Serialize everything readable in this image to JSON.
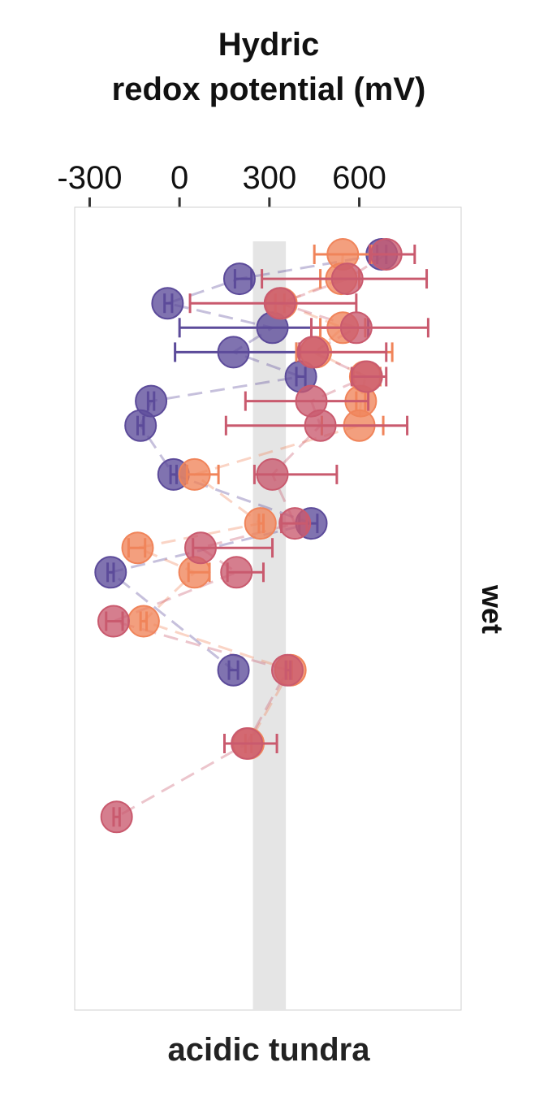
{
  "chart_data": {
    "type": "scatter",
    "title_lines": [
      "Hydric",
      "redox potential (mV)"
    ],
    "xlabel": "acidic tundra",
    "facet_label": "wet",
    "xlim": [
      -350,
      940
    ],
    "xticks": [
      -300,
      0,
      300,
      600
    ],
    "tick_labels": [
      "-300",
      "0",
      "300",
      "600"
    ],
    "reference_band": {
      "x_from": 245,
      "x_to": 355,
      "color": "#e5e5e5"
    },
    "grid": false,
    "series": [
      {
        "color": "#5c4b9a",
        "points": [
          {
            "x": 675,
            "lo": 660,
            "hi": 690
          },
          {
            "x": 200,
            "lo": 185,
            "hi": 240
          },
          {
            "x": -40,
            "lo": -50,
            "hi": -25
          },
          {
            "x": 310,
            "lo": 0,
            "hi": 630
          },
          {
            "x": 180,
            "lo": -15,
            "hi": 390
          },
          {
            "x": 405,
            "lo": 390,
            "hi": 420
          },
          {
            "x": -95,
            "lo": -105,
            "hi": -85
          },
          {
            "x": -130,
            "lo": -140,
            "hi": -120
          },
          {
            "x": -20,
            "lo": -30,
            "hi": -10
          },
          {
            "x": 440,
            "lo": 400,
            "hi": 460
          },
          {
            "x": -230,
            "lo": -240,
            "hi": -220
          },
          {
            "x": 180,
            "lo": 165,
            "hi": 195
          }
        ],
        "rows": [
          1,
          2,
          3,
          4,
          5,
          6,
          7,
          8,
          10,
          12,
          14,
          18
        ]
      },
      {
        "color": "#f0845a",
        "points": [
          {
            "x": 545,
            "lo": 450,
            "hi": 640
          },
          {
            "x": 540,
            "lo": 470,
            "hi": 600
          },
          {
            "x": 340,
            "lo": 320,
            "hi": 350
          },
          {
            "x": 545,
            "lo": 470,
            "hi": 620
          },
          {
            "x": 455,
            "lo": 390,
            "hi": 710
          },
          {
            "x": 620,
            "lo": 580,
            "hi": 670
          },
          {
            "x": 605,
            "lo": 590,
            "hi": 620
          },
          {
            "x": 600,
            "lo": 475,
            "hi": 680
          },
          {
            "x": 50,
            "lo": 25,
            "hi": 130
          },
          {
            "x": 270,
            "lo": 265,
            "hi": 280
          },
          {
            "x": -140,
            "lo": -170,
            "hi": -115
          },
          {
            "x": 50,
            "lo": 30,
            "hi": 100
          },
          {
            "x": -120,
            "lo": -130,
            "hi": -110
          },
          {
            "x": 370,
            "lo": 360,
            "hi": 375
          },
          {
            "x": 230,
            "lo": 220,
            "hi": 240
          }
        ],
        "rows": [
          1,
          2,
          3,
          4,
          5,
          6,
          7,
          8,
          10,
          12,
          13,
          14,
          16,
          18,
          21
        ]
      },
      {
        "color": "#c95a6e",
        "points": [
          {
            "x": 690,
            "lo": 635,
            "hi": 785
          },
          {
            "x": 560,
            "lo": 275,
            "hi": 825
          },
          {
            "x": 335,
            "lo": 35,
            "hi": 590
          },
          {
            "x": 590,
            "lo": 440,
            "hi": 830
          },
          {
            "x": 445,
            "lo": 400,
            "hi": 690
          },
          {
            "x": 625,
            "lo": 575,
            "hi": 690
          },
          {
            "x": 440,
            "lo": 220,
            "hi": 630
          },
          {
            "x": 470,
            "lo": 155,
            "hi": 760
          },
          {
            "x": 310,
            "lo": 250,
            "hi": 525
          },
          {
            "x": 385,
            "lo": 340,
            "hi": 425
          },
          {
            "x": 70,
            "lo": 45,
            "hi": 310
          },
          {
            "x": 190,
            "lo": 160,
            "hi": 280
          },
          {
            "x": -220,
            "lo": -245,
            "hi": -190
          },
          {
            "x": 360,
            "lo": 355,
            "hi": 370
          },
          {
            "x": 225,
            "lo": 150,
            "hi": 325
          },
          {
            "x": -210,
            "lo": -220,
            "hi": -200
          }
        ],
        "rows": [
          1,
          2,
          3,
          4,
          5,
          6,
          7,
          8,
          10,
          12,
          13,
          14,
          16,
          18,
          21,
          24
        ]
      }
    ],
    "rows_total": 24
  }
}
